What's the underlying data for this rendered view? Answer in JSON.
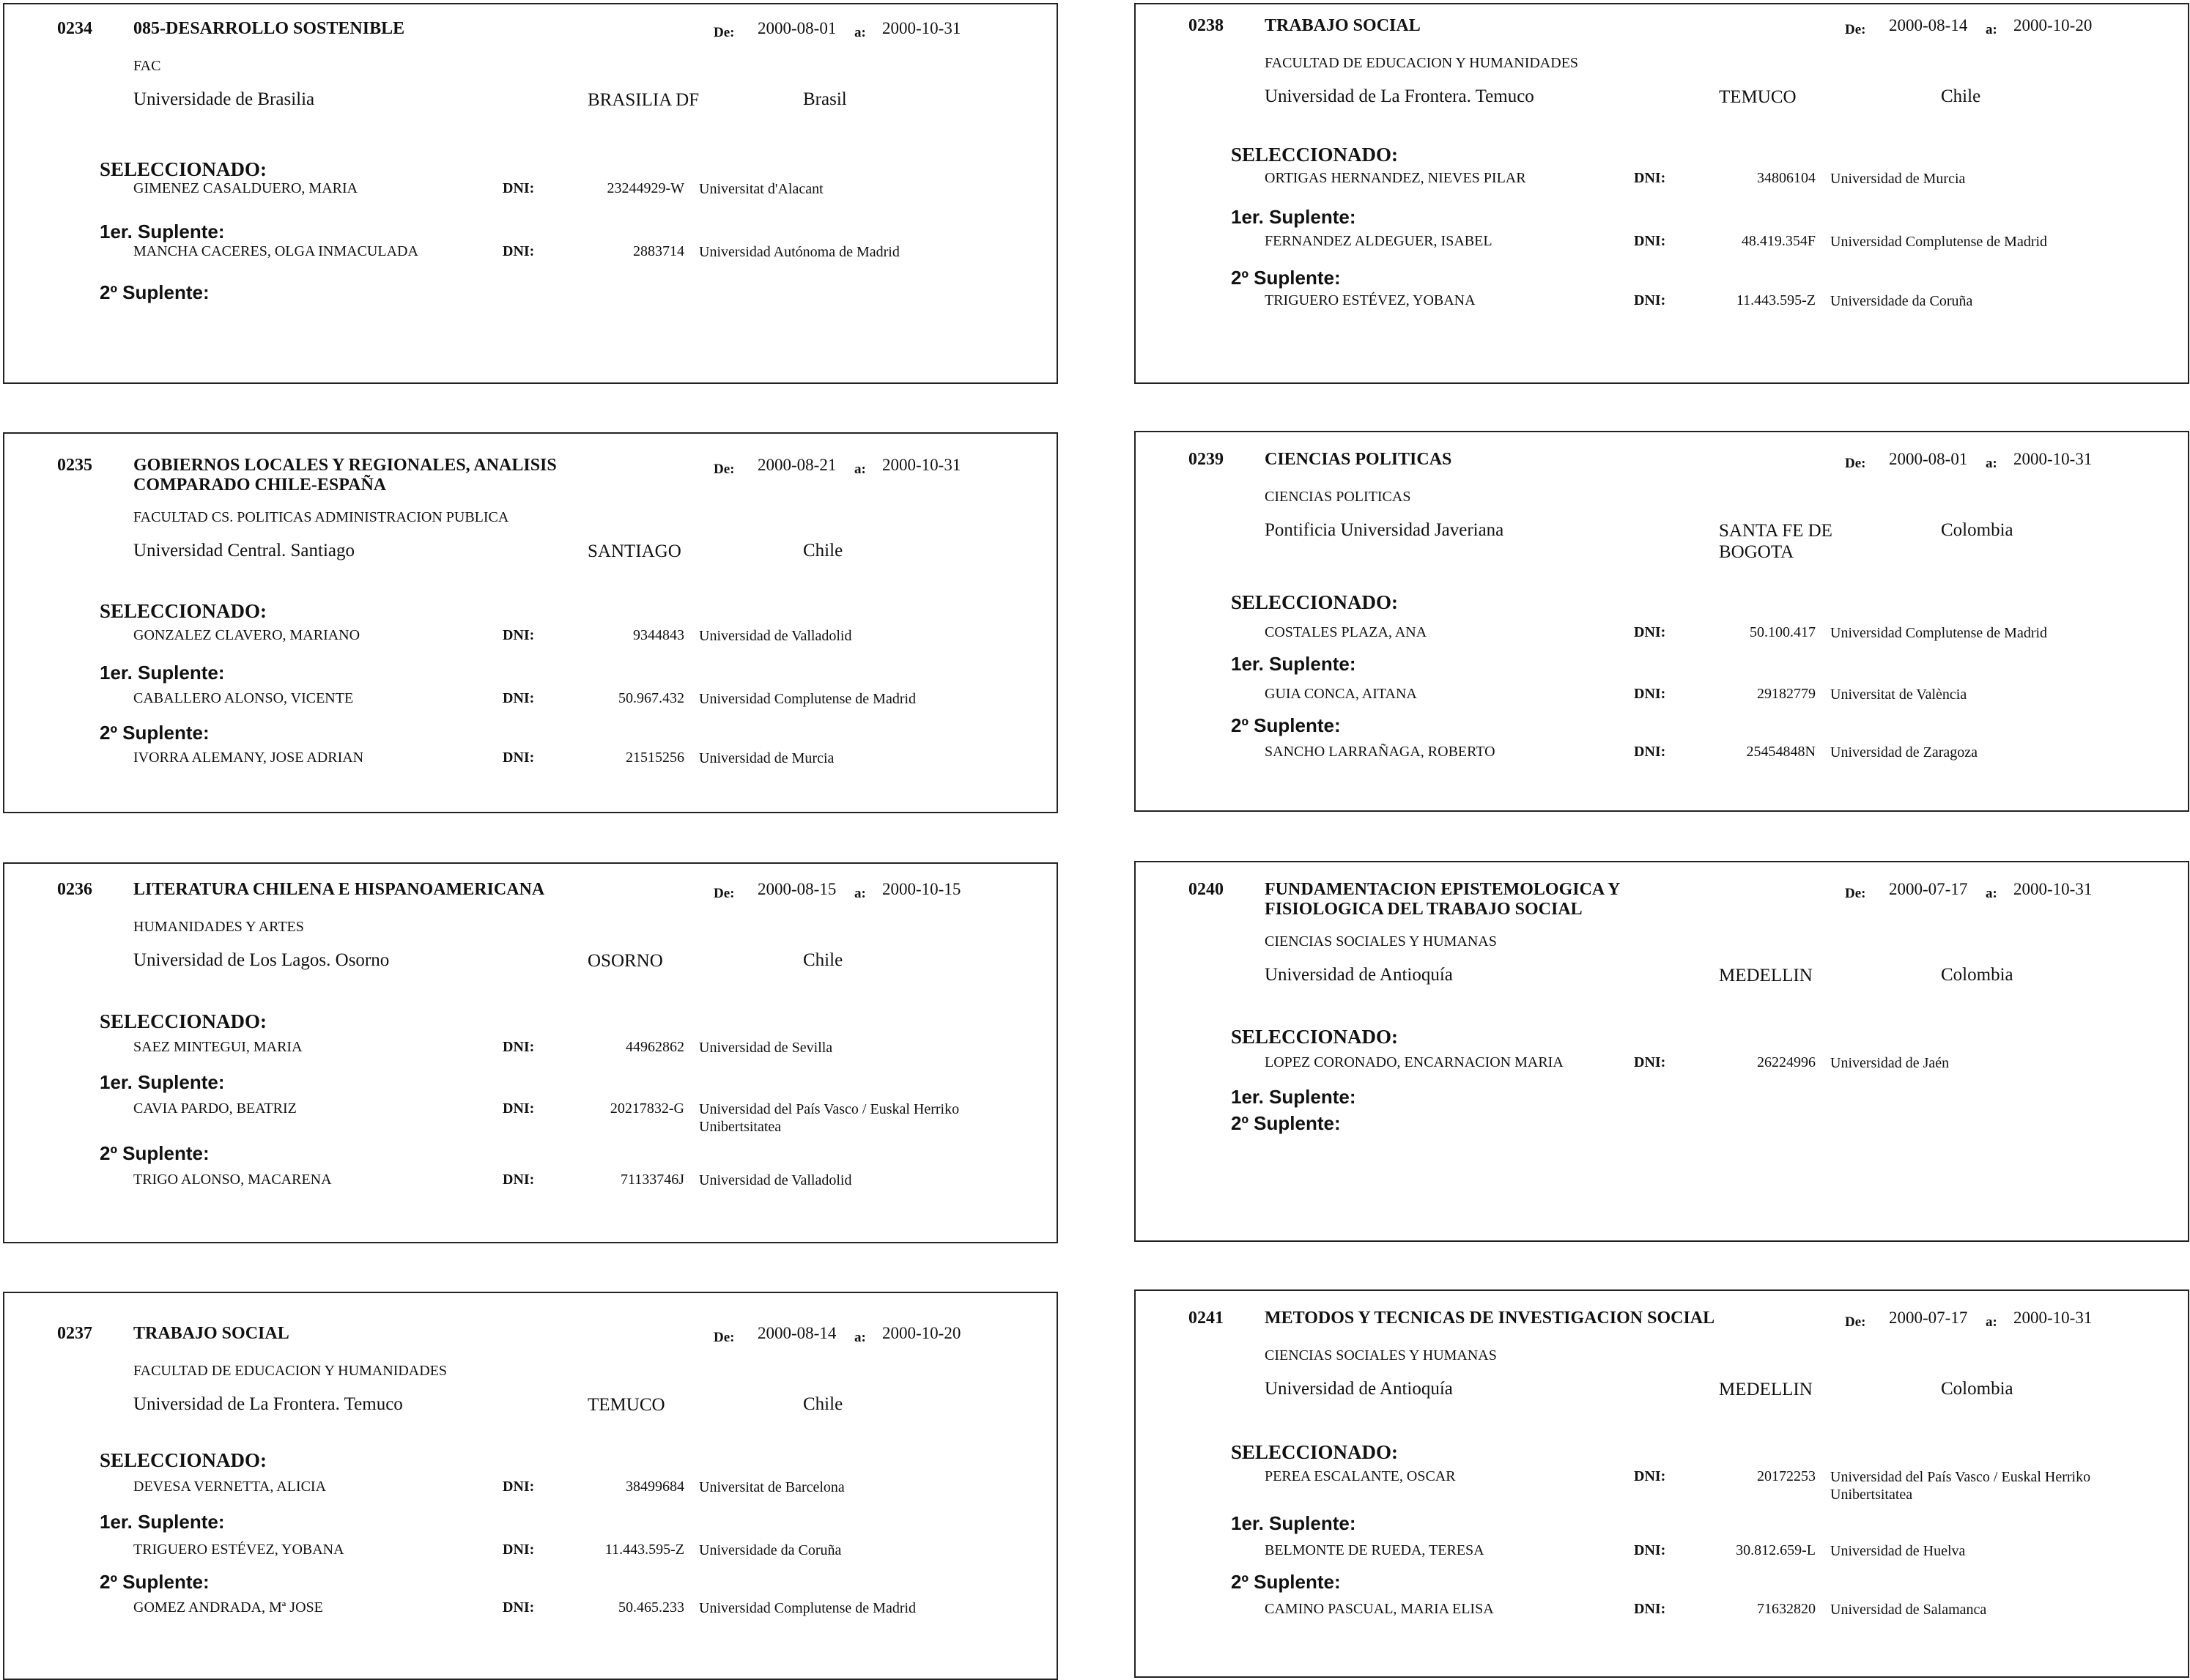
{
  "labels": {
    "de": "De:",
    "a": "a:",
    "dni": "DNI:",
    "seleccionado": "SELECCIONADO:",
    "suplente1": "1er. Suplente:",
    "suplente2": "2º Suplente:"
  },
  "cards": [
    {
      "code": "0234",
      "title": "085-DESARROLLO SOSTENIBLE",
      "de": "2000-08-01",
      "a": "2000-10-31",
      "faculty": "FAC",
      "university": "Universidade de Brasilia",
      "city": "BRASILIA DF",
      "country": "Brasil",
      "seleccionado": {
        "name": "GIMENEZ CASALDUERO, MARIA",
        "dni": "23244929-W",
        "university": "Universitat d'Alacant"
      },
      "suplente1": {
        "name": "MANCHA CACERES, OLGA INMACULADA",
        "dni": "2883714",
        "university": "Universidad Autónoma de Madrid"
      },
      "suplente2": null
    },
    {
      "code": "0235",
      "title": "GOBIERNOS LOCALES Y REGIONALES, ANALISIS COMPARADO CHILE-ESPAÑA",
      "de": "2000-08-21",
      "a": "2000-10-31",
      "faculty": "FACULTAD CS. POLITICAS ADMINISTRACION PUBLICA",
      "university": "Universidad Central. Santiago",
      "city": "SANTIAGO",
      "country": "Chile",
      "seleccionado": {
        "name": "GONZALEZ CLAVERO, MARIANO",
        "dni": "9344843",
        "university": "Universidad de Valladolid"
      },
      "suplente1": {
        "name": "CABALLERO ALONSO, VICENTE",
        "dni": "50.967.432",
        "university": "Universidad Complutense de Madrid"
      },
      "suplente2": {
        "name": "IVORRA ALEMANY, JOSE ADRIAN",
        "dni": "21515256",
        "university": "Universidad de Murcia"
      }
    },
    {
      "code": "0236",
      "title": "LITERATURA CHILENA E HISPANOAMERICANA",
      "de": "2000-08-15",
      "a": "2000-10-15",
      "faculty": "HUMANIDADES Y ARTES",
      "university": "Universidad de Los Lagos. Osorno",
      "city": "OSORNO",
      "country": "Chile",
      "seleccionado": {
        "name": "SAEZ MINTEGUI, MARIA",
        "dni": "44962862",
        "university": "Universidad de Sevilla"
      },
      "suplente1": {
        "name": "CAVIA PARDO, BEATRIZ",
        "dni": "20217832-G",
        "university": "Universidad del País Vasco / Euskal Herriko Unibertsitatea"
      },
      "suplente2": {
        "name": "TRIGO ALONSO, MACARENA",
        "dni": "71133746J",
        "university": "Universidad de Valladolid"
      }
    },
    {
      "code": "0237",
      "title": "TRABAJO SOCIAL",
      "de": "2000-08-14",
      "a": "2000-10-20",
      "faculty": "FACULTAD DE EDUCACION Y HUMANIDADES",
      "university": "Universidad de La Frontera. Temuco",
      "city": "TEMUCO",
      "country": "Chile",
      "seleccionado": {
        "name": "DEVESA VERNETTA, ALICIA",
        "dni": "38499684",
        "university": "Universitat de Barcelona"
      },
      "suplente1": {
        "name": "TRIGUERO ESTÉVEZ, YOBANA",
        "dni": "11.443.595-Z",
        "university": "Universidade da Coruña"
      },
      "suplente2": {
        "name": "GOMEZ ANDRADA, Mª JOSE",
        "dni": "50.465.233",
        "university": "Universidad Complutense de Madrid"
      }
    },
    {
      "code": "0238",
      "title": "TRABAJO SOCIAL",
      "de": "2000-08-14",
      "a": "2000-10-20",
      "faculty": "FACULTAD DE EDUCACION Y HUMANIDADES",
      "university": "Universidad de La Frontera. Temuco",
      "city": "TEMUCO",
      "country": "Chile",
      "seleccionado": {
        "name": "ORTIGAS HERNANDEZ, NIEVES PILAR",
        "dni": "34806104",
        "university": "Universidad de Murcia"
      },
      "suplente1": {
        "name": "FERNANDEZ ALDEGUER, ISABEL",
        "dni": "48.419.354F",
        "university": "Universidad Complutense de Madrid"
      },
      "suplente2": {
        "name": "TRIGUERO ESTÉVEZ, YOBANA",
        "dni": "11.443.595-Z",
        "university": "Universidade da Coruña"
      }
    },
    {
      "code": "0239",
      "title": "CIENCIAS POLITICAS",
      "de": "2000-08-01",
      "a": "2000-10-31",
      "faculty": "CIENCIAS POLITICAS",
      "university": "Pontificia Universidad Javeriana",
      "city": "SANTA FE DE BOGOTA",
      "country": "Colombia",
      "seleccionado": {
        "name": "COSTALES PLAZA, ANA",
        "dni": "50.100.417",
        "university": "Universidad Complutense de Madrid"
      },
      "suplente1": {
        "name": "GUIA CONCA, AITANA",
        "dni": "29182779",
        "university": "Universitat de València"
      },
      "suplente2": {
        "name": "SANCHO LARRAÑAGA, ROBERTO",
        "dni": "25454848N",
        "university": "Universidad de Zaragoza"
      }
    },
    {
      "code": "0240",
      "title": "FUNDAMENTACION EPISTEMOLOGICA Y FISIOLOGICA DEL TRABAJO SOCIAL",
      "de": "2000-07-17",
      "a": "2000-10-31",
      "faculty": "CIENCIAS SOCIALES Y HUMANAS",
      "university": "Universidad de Antioquía",
      "city": "MEDELLIN",
      "country": "Colombia",
      "seleccionado": {
        "name": "LOPEZ CORONADO, ENCARNACION MARIA",
        "dni": "26224996",
        "university": "Universidad de Jaén"
      },
      "suplente1": null,
      "suplente2": null
    },
    {
      "code": "0241",
      "title": "METODOS Y TECNICAS DE INVESTIGACION SOCIAL",
      "de": "2000-07-17",
      "a": "2000-10-31",
      "faculty": "CIENCIAS SOCIALES Y HUMANAS",
      "university": "Universidad de Antioquía",
      "city": "MEDELLIN",
      "country": "Colombia",
      "seleccionado": {
        "name": "PEREA ESCALANTE, OSCAR",
        "dni": "20172253",
        "university": "Universidad del País Vasco / Euskal Herriko Unibertsitatea"
      },
      "suplente1": {
        "name": "BELMONTE DE RUEDA, TERESA",
        "dni": "30.812.659-L",
        "university": "Universidad de Huelva"
      },
      "suplente2": {
        "name": "CAMINO PASCUAL, MARIA ELISA",
        "dni": "71632820",
        "university": "Universidad de Salamanca"
      }
    }
  ]
}
